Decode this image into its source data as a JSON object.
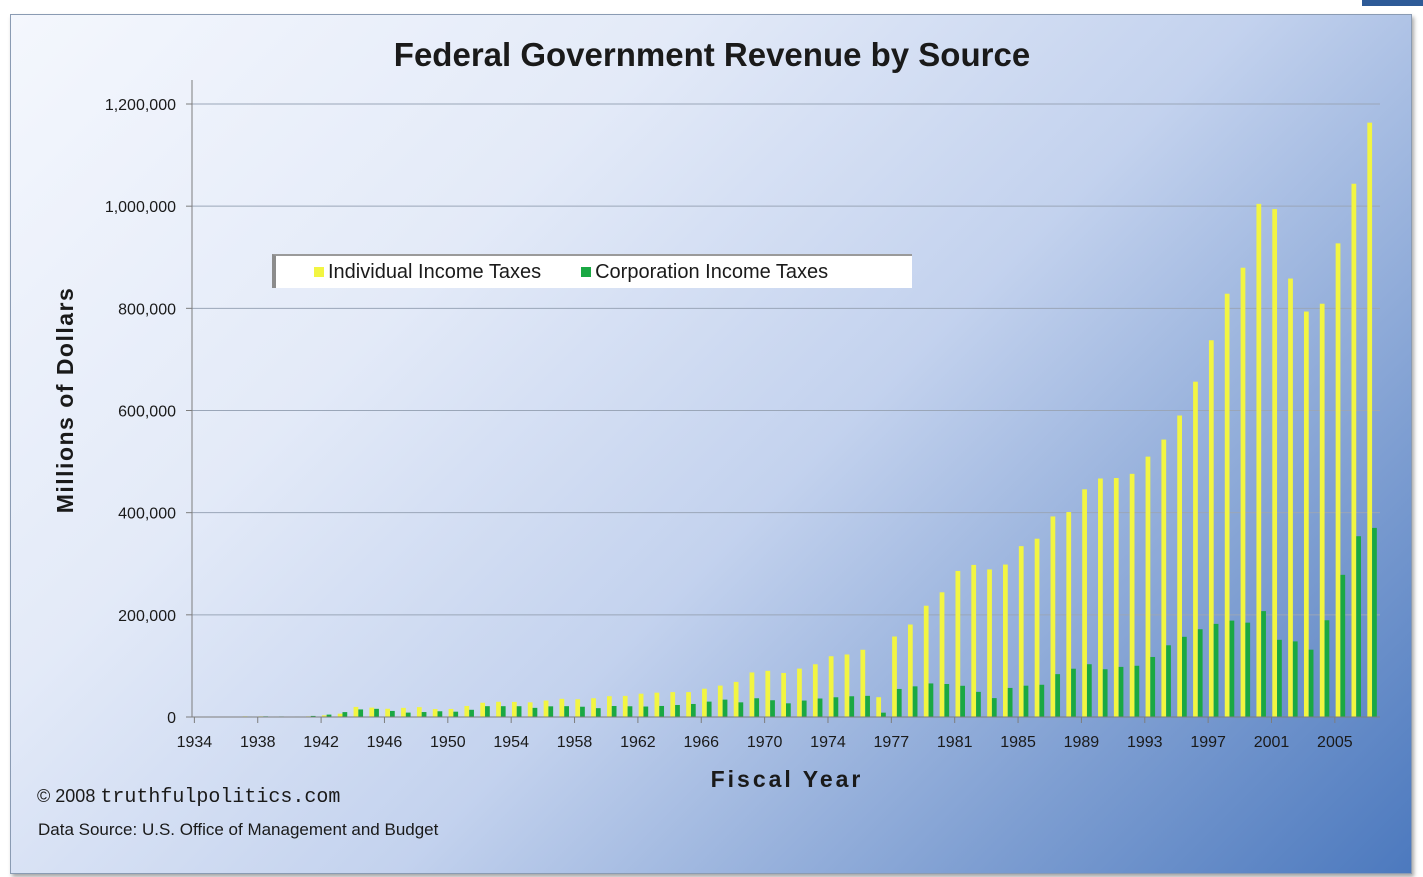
{
  "chart_data": {
    "type": "bar",
    "title": "Federal Government Revenue by Source",
    "xlabel": "Fiscal Year",
    "ylabel": "Millions of Dollars",
    "ylim": [
      0,
      1200000
    ],
    "yticks": [
      0,
      200000,
      400000,
      600000,
      800000,
      1000000,
      1200000
    ],
    "ytick_labels": [
      "0",
      "200,000",
      "400,000",
      "600,000",
      "800,000",
      "1,000,000",
      "1,200,000"
    ],
    "xtick_labels": [
      "1934",
      "1938",
      "1942",
      "1946",
      "1950",
      "1954",
      "1958",
      "1962",
      "1966",
      "1970",
      "1974",
      "1977",
      "1981",
      "1985",
      "1989",
      "1993",
      "1997",
      "2001",
      "2005"
    ],
    "grid": true,
    "legend_position": "top-left",
    "categories": [
      "1934",
      "1935",
      "1936",
      "1937",
      "1938",
      "1939",
      "1940",
      "1941",
      "1942",
      "1943",
      "1944",
      "1945",
      "1946",
      "1947",
      "1948",
      "1949",
      "1950",
      "1951",
      "1952",
      "1953",
      "1954",
      "1955",
      "1956",
      "1957",
      "1958",
      "1959",
      "1960",
      "1961",
      "1962",
      "1963",
      "1964",
      "1965",
      "1966",
      "1967",
      "1968",
      "1969",
      "1970",
      "1971",
      "1972",
      "1973",
      "1974",
      "1975",
      "1976",
      "TQ",
      "1977",
      "1978",
      "1979",
      "1980",
      "1981",
      "1982",
      "1983",
      "1984",
      "1985",
      "1986",
      "1987",
      "1988",
      "1989",
      "1990",
      "1991",
      "1992",
      "1993",
      "1994",
      "1995",
      "1996",
      "1997",
      "1998",
      "1999",
      "2000",
      "2001",
      "2002",
      "2003",
      "2004",
      "2005",
      "2006",
      "2007"
    ],
    "series": [
      {
        "name": "Individual Income Taxes",
        "color": "#f2f542",
        "values": [
          400,
          500,
          700,
          1300,
          1300,
          1000,
          900,
          1300,
          3300,
          6500,
          19700,
          18400,
          16100,
          17900,
          19300,
          15600,
          15800,
          21600,
          27900,
          29800,
          29500,
          28700,
          32200,
          35600,
          34700,
          36700,
          40700,
          41300,
          45600,
          47600,
          48700,
          48800,
          55400,
          61500,
          68700,
          87200,
          90400,
          86200,
          94700,
          103200,
          119000,
          122400,
          131600,
          38800,
          157600,
          181000,
          217800,
          244100,
          285900,
          297700,
          288900,
          298400,
          334500,
          349000,
          392600,
          401200,
          445700,
          466900,
          467800,
          476000,
          509700,
          543100,
          590200,
          656400,
          737500,
          828600,
          879500,
          1004500,
          994300,
          858300,
          793700,
          809000,
          927200,
          1043900,
          1163500
        ]
      },
      {
        "name": "Corporation Income Taxes",
        "color": "#1aa843",
        "values": [
          400,
          500,
          700,
          1000,
          1300,
          1100,
          1000,
          2100,
          4700,
          9600,
          14800,
          16000,
          11900,
          8600,
          9700,
          11200,
          10400,
          14100,
          21200,
          21200,
          21100,
          17900,
          20900,
          21200,
          20100,
          17300,
          21500,
          21000,
          20500,
          21600,
          23500,
          25500,
          30100,
          34000,
          28700,
          36700,
          32800,
          26800,
          32200,
          36200,
          38600,
          40600,
          41400,
          8500,
          54900,
          60000,
          65700,
          64600,
          61100,
          49200,
          37000,
          56900,
          61300,
          63100,
          83900,
          94500,
          103300,
          93500,
          98100,
          100300,
          117500,
          140400,
          157000,
          171800,
          182300,
          188700,
          184700,
          207300,
          151100,
          148000,
          131800,
          189400,
          278300,
          353900,
          370200
        ]
      }
    ],
    "copyright_symbol": "©",
    "copyright_year": "2008",
    "copyright_site": "truthfulpolitics.com",
    "source_note": "Data Source:  U.S. Office of Management and Budget"
  }
}
